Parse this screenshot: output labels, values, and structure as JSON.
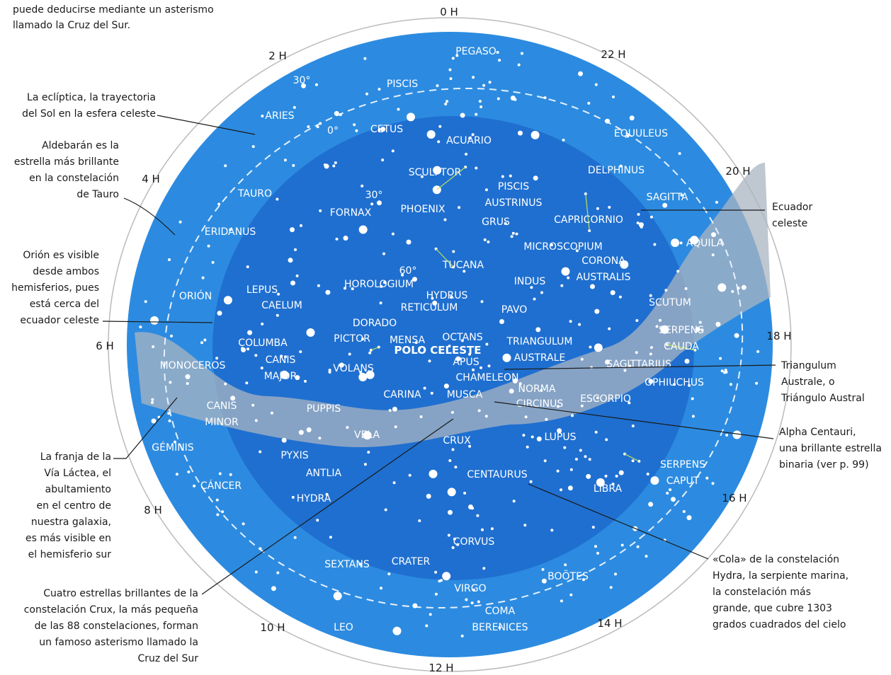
{
  "intro": [
    "puede deducirse mediante un asterismo",
    "llamado la Cruz del Sur."
  ],
  "annotations": [
    [
      "La eclíptica, la trayectoria",
      "del Sol en la esfera celeste"
    ],
    [
      "Aldebarán es la",
      "estrella más brillante",
      "en la constelación",
      "de Tauro"
    ],
    [
      "Orión es visible",
      "desde ambos",
      "hemisferios, pues",
      "está cerca del",
      "ecuador celeste"
    ],
    [
      "La franja de la",
      "Vía Láctea, el",
      "abultamiento",
      "en el centro de",
      "nuestra galaxia,",
      "es más visible en",
      "el hemisferio sur"
    ],
    [
      "Cuatro estrellas brillantes de la",
      "constelación Crux, la más pequeña",
      "de las 88 constelaciones, forman",
      "un famoso asterismo llamado la",
      "Cruz del Sur"
    ],
    [
      "Ecuador",
      "celeste"
    ],
    [
      "Triangulum",
      "Australe, o",
      "Triángulo Austral"
    ],
    [
      "Alpha Centauri,",
      "una brillante estrella",
      "binaria (ver p. 99)"
    ],
    [
      "«Cola» de la constelación",
      "Hydra, la serpiente marina,",
      "la constelación más",
      "grande, que cubre 1303",
      "grados cuadrados del cielo"
    ]
  ],
  "hours": [
    "0 H",
    "2 H",
    "22 H",
    "4 H",
    "20 H",
    "6 H",
    "18 H",
    "8 H",
    "16 H",
    "10 H",
    "14 H",
    "12 H"
  ],
  "degrees": [
    "30°",
    "0°",
    "30°",
    "60°"
  ],
  "pole": "POLO CELESTE",
  "constellations": [
    [
      "PEGASO"
    ],
    [
      "PISCIS"
    ],
    [
      "ARIES"
    ],
    [
      "CETUS"
    ],
    [
      "ACUARIO"
    ],
    [
      "EQUULEUS"
    ],
    [
      "SCULPTOR"
    ],
    [
      "DELPHINUS"
    ],
    [
      "TAURO"
    ],
    [
      "PISCIS",
      "AUSTRINUS"
    ],
    [
      "SAGITTA"
    ],
    [
      "FORNAX"
    ],
    [
      "PHOENIX"
    ],
    [
      "GRUS"
    ],
    [
      "CAPRICORNIO"
    ],
    [
      "ERIDANUS"
    ],
    [
      "AQUILA"
    ],
    [
      "MICROSCOPIUM"
    ],
    [
      "CORONA",
      "AUSTRALIS"
    ],
    [
      "TUCANA"
    ],
    [
      "HOROLOGIUM"
    ],
    [
      "LEPUS"
    ],
    [
      "ORIÓN"
    ],
    [
      "INDUS"
    ],
    [
      "HYDRUS"
    ],
    [
      "CAELUM"
    ],
    [
      "RETICULUM"
    ],
    [
      "PAVO"
    ],
    [
      "SCUTUM"
    ],
    [
      "DORADO"
    ],
    [
      "SERPENS",
      "CAUDA"
    ],
    [
      "COLUMBA"
    ],
    [
      "PICTOR"
    ],
    [
      "MENSA"
    ],
    [
      "OCTANS"
    ],
    [
      "TRIANGULUM",
      "AUSTRALE"
    ],
    [
      "CANIS",
      "MAJOR"
    ],
    [
      "APUS"
    ],
    [
      "SAGITTARIUS"
    ],
    [
      "MONOCEROS"
    ],
    [
      "VOLANS"
    ],
    [
      "CHAMELEON"
    ],
    [
      "OPHIUCHUS"
    ],
    [
      "NORMA"
    ],
    [
      "CARINA"
    ],
    [
      "MUSCA"
    ],
    [
      "CIRCINUS"
    ],
    [
      "ESCORPIO"
    ],
    [
      "CANIS",
      "MINOR"
    ],
    [
      "PUPPIS"
    ],
    [
      "VELA"
    ],
    [
      "LUPUS"
    ],
    [
      "CRUX"
    ],
    [
      "GÉMINIS"
    ],
    [
      "PYXIS"
    ],
    [
      "ANTLIA"
    ],
    [
      "CENTAURUS"
    ],
    [
      "SERPENS",
      "CAPUT"
    ],
    [
      "CÁNCER"
    ],
    [
      "LIBRA"
    ],
    [
      "HYDRA"
    ],
    [
      "CORVUS"
    ],
    [
      "SEXTANS"
    ],
    [
      "CRATER"
    ],
    [
      "BOÖTES"
    ],
    [
      "VIRGO"
    ],
    [
      "COMA",
      "BERENICES"
    ],
    [
      "LEO"
    ]
  ]
}
